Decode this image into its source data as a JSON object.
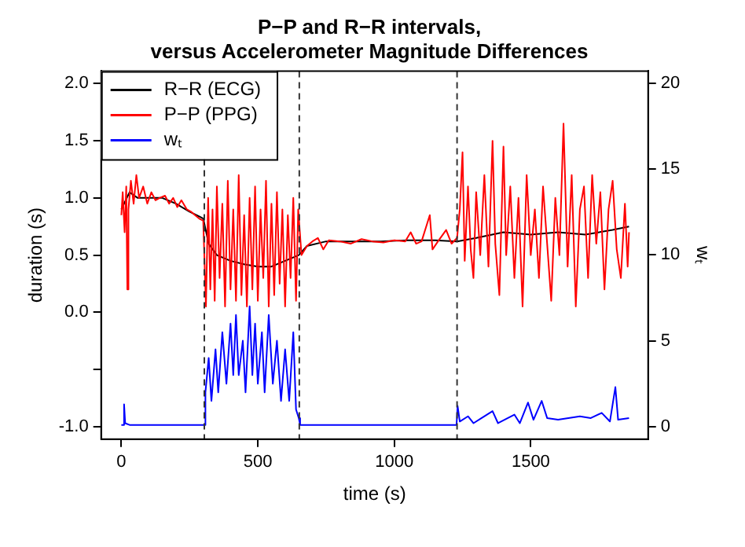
{
  "chart_data": {
    "type": "line",
    "title": "P−P and R−R intervals,\nversus Accelerometer Magnitude Differences",
    "xlabel": "time (s)",
    "ylabel": "duration (s)",
    "y2label": "wₜ",
    "xlim": [
      -74,
      1930
    ],
    "xticks": [
      0,
      500,
      1000,
      1500
    ],
    "ylim": [
      -1.11,
      2.11
    ],
    "yticks": [
      {
        "value": -1,
        "label": "-1.0"
      },
      {
        "value": -0.5,
        "label": null
      },
      {
        "value": 0,
        "label": "0.0"
      },
      {
        "value": 0.5,
        "label": "0.5"
      },
      {
        "value": 1,
        "label": "1.0"
      },
      {
        "value": 1.5,
        "label": "1.5"
      },
      {
        "value": 2,
        "label": "2.0"
      }
    ],
    "y2lim": [
      -0.73,
      20.7
    ],
    "y2ticks": [
      0,
      5,
      10,
      15,
      20
    ],
    "grid": false,
    "legend": "top left",
    "series": [
      {
        "name": "R−R (ECG)",
        "color": "#000000",
        "x": [
          0,
          30,
          60,
          100,
          150,
          200,
          250,
          300,
          320,
          350,
          400,
          450,
          500,
          550,
          600,
          650,
          680,
          750,
          850,
          950,
          1050,
          1150,
          1230,
          1300,
          1400,
          1500,
          1600,
          1700,
          1800,
          1860
        ],
        "values": [
          0.9,
          1.05,
          1.0,
          1.0,
          1.0,
          0.95,
          0.88,
          0.82,
          0.6,
          0.5,
          0.45,
          0.42,
          0.4,
          0.4,
          0.45,
          0.5,
          0.58,
          0.62,
          0.62,
          0.62,
          0.63,
          0.63,
          0.62,
          0.65,
          0.7,
          0.68,
          0.7,
          0.68,
          0.72,
          0.75
        ]
      },
      {
        "name": "P−P (PPG)",
        "color": "#ff0000",
        "x": [
          0,
          5,
          12,
          18,
          22,
          26,
          35,
          45,
          55,
          65,
          80,
          95,
          110,
          125,
          140,
          160,
          175,
          190,
          205,
          220,
          240,
          255,
          270,
          285,
          300,
          310,
          318,
          326,
          334,
          342,
          350,
          360,
          370,
          380,
          390,
          400,
          410,
          420,
          430,
          440,
          450,
          460,
          470,
          480,
          490,
          500,
          510,
          520,
          530,
          540,
          550,
          560,
          570,
          580,
          590,
          600,
          610,
          620,
          630,
          640,
          648,
          660,
          680,
          700,
          720,
          740,
          760,
          800,
          840,
          880,
          920,
          960,
          1000,
          1040,
          1060,
          1080,
          1100,
          1130,
          1140,
          1160,
          1190,
          1210,
          1230,
          1240,
          1250,
          1258,
          1270,
          1280,
          1290,
          1300,
          1315,
          1330,
          1345,
          1360,
          1370,
          1385,
          1400,
          1410,
          1425,
          1440,
          1455,
          1470,
          1485,
          1500,
          1515,
          1530,
          1545,
          1560,
          1575,
          1590,
          1605,
          1620,
          1635,
          1650,
          1665,
          1680,
          1695,
          1710,
          1725,
          1740,
          1755,
          1770,
          1785,
          1800,
          1815,
          1830,
          1845,
          1855,
          1860
        ],
        "values": [
          0.85,
          1.05,
          0.7,
          1.1,
          0.2,
          0.9,
          1.15,
          0.95,
          1.2,
          1.0,
          1.1,
          0.95,
          1.05,
          0.98,
          1.0,
          1.02,
          0.95,
          1.0,
          0.92,
          0.98,
          0.9,
          0.88,
          0.85,
          0.82,
          0.8,
          0.05,
          1.0,
          0.2,
          0.9,
          0.1,
          1.1,
          0.3,
          0.95,
          0.05,
          1.15,
          0.2,
          0.9,
          0.1,
          1.2,
          0.15,
          0.85,
          0.05,
          1.0,
          0.2,
          1.1,
          0.1,
          0.9,
          0.3,
          1.15,
          0.05,
          0.95,
          0.15,
          1.05,
          0.25,
          0.9,
          0.05,
          0.85,
          0.3,
          1.0,
          0.1,
          0.9,
          0.5,
          0.58,
          0.62,
          0.65,
          0.55,
          0.63,
          0.62,
          0.6,
          0.64,
          0.62,
          0.61,
          0.63,
          0.62,
          0.7,
          0.6,
          0.62,
          0.85,
          0.55,
          0.62,
          0.72,
          0.6,
          0.65,
          0.9,
          1.4,
          0.45,
          1.1,
          0.55,
          0.3,
          1.05,
          0.5,
          1.2,
          0.4,
          1.5,
          0.6,
          0.15,
          1.45,
          0.5,
          1.1,
          0.3,
          1.0,
          0.05,
          1.2,
          0.5,
          0.9,
          0.3,
          1.1,
          0.6,
          0.1,
          1.0,
          0.5,
          1.65,
          0.4,
          1.2,
          0.05,
          0.9,
          1.1,
          0.3,
          1.2,
          0.6,
          1.05,
          0.2,
          0.9,
          1.15,
          0.55,
          0.3,
          0.95,
          0.4,
          0.7
        ]
      },
      {
        "name": "wₜ",
        "color": "#0000ff",
        "axis": "y2",
        "x": [
          0,
          8,
          10,
          14,
          30,
          150,
          300,
          305,
          308,
          320,
          330,
          345,
          355,
          370,
          385,
          400,
          410,
          420,
          430,
          445,
          455,
          470,
          480,
          490,
          500,
          515,
          525,
          540,
          555,
          570,
          585,
          600,
          615,
          630,
          640,
          650,
          655,
          900,
          1228,
          1232,
          1240,
          1270,
          1290,
          1320,
          1360,
          1380,
          1440,
          1460,
          1490,
          1510,
          1540,
          1560,
          1600,
          1680,
          1720,
          1760,
          1790,
          1810,
          1820,
          1860
        ],
        "values": [
          0.1,
          0.1,
          1.3,
          0.2,
          0.1,
          0.1,
          0.1,
          0.1,
          2,
          4,
          1.5,
          4.5,
          2,
          5.5,
          2.5,
          6,
          3,
          6.5,
          3,
          5,
          2,
          7,
          3,
          6,
          2.5,
          5.5,
          2,
          6.5,
          2.5,
          5,
          1.5,
          4.5,
          1.5,
          5.5,
          1,
          0.5,
          0.1,
          0.1,
          0.1,
          1.2,
          0.3,
          0.6,
          0.2,
          0.5,
          0.9,
          0.2,
          0.7,
          0.2,
          1.4,
          0.4,
          1.5,
          0.5,
          0.4,
          0.6,
          0.5,
          0.8,
          0.3,
          2.3,
          0.4,
          0.5
        ]
      }
    ],
    "ref_lines": [
      {
        "axis": "x",
        "value": 304,
        "color": "#333333",
        "line_style": "dashed"
      },
      {
        "axis": "x",
        "value": 652,
        "color": "#333333",
        "line_style": "dashed"
      },
      {
        "axis": "x",
        "value": 1230,
        "color": "#333333",
        "line_style": "dashed"
      }
    ]
  }
}
